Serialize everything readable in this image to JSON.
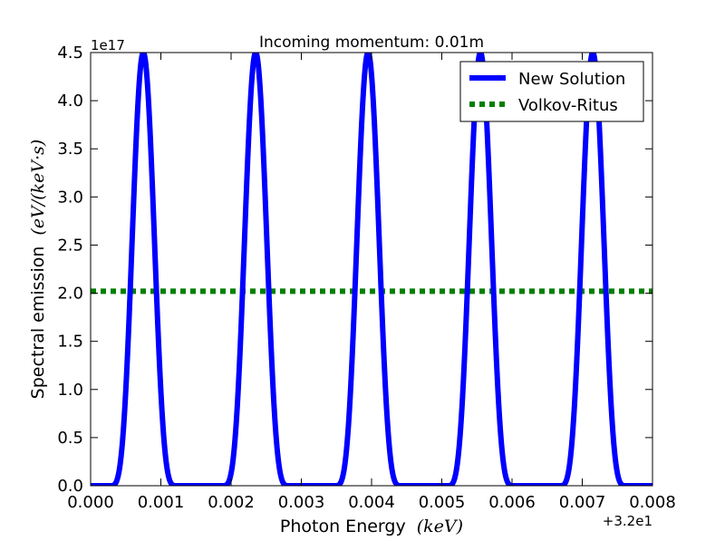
{
  "chart_data": {
    "type": "line",
    "title": "Incoming momentum: 0.01m",
    "xlabel": "Photon Energy",
    "xlabel_unit": "(keV)",
    "ylabel": "Spectral emission",
    "ylabel_unit": "(eV/(keV·s)",
    "x_offset_label": "+3.2e1",
    "y_scale_label": "1e17",
    "xlim": [
      0.0,
      0.008
    ],
    "ylim": [
      0.0,
      4.5
    ],
    "x_ticks": [
      "0.000",
      "0.001",
      "0.002",
      "0.003",
      "0.004",
      "0.005",
      "0.006",
      "0.007",
      "0.008"
    ],
    "y_ticks": [
      "0.0",
      "0.5",
      "1.0",
      "1.5",
      "2.0",
      "2.5",
      "3.0",
      "3.5",
      "4.0",
      "4.5"
    ],
    "grid": false,
    "legend_position": "top-right",
    "series": [
      {
        "name": "New Solution",
        "style": "solid",
        "color": "#0000ff",
        "peak": 4.5,
        "peak_x": [
          0.00075,
          0.00235,
          0.00395,
          0.00555,
          0.00715
        ],
        "peak_half_width": 0.00048,
        "baseline": 0.0
      },
      {
        "name": "Volkov-Ritus",
        "style": "dotted",
        "color": "#007f00",
        "x": [
          0.0,
          0.008
        ],
        "y": [
          2.02,
          2.02
        ]
      }
    ]
  }
}
